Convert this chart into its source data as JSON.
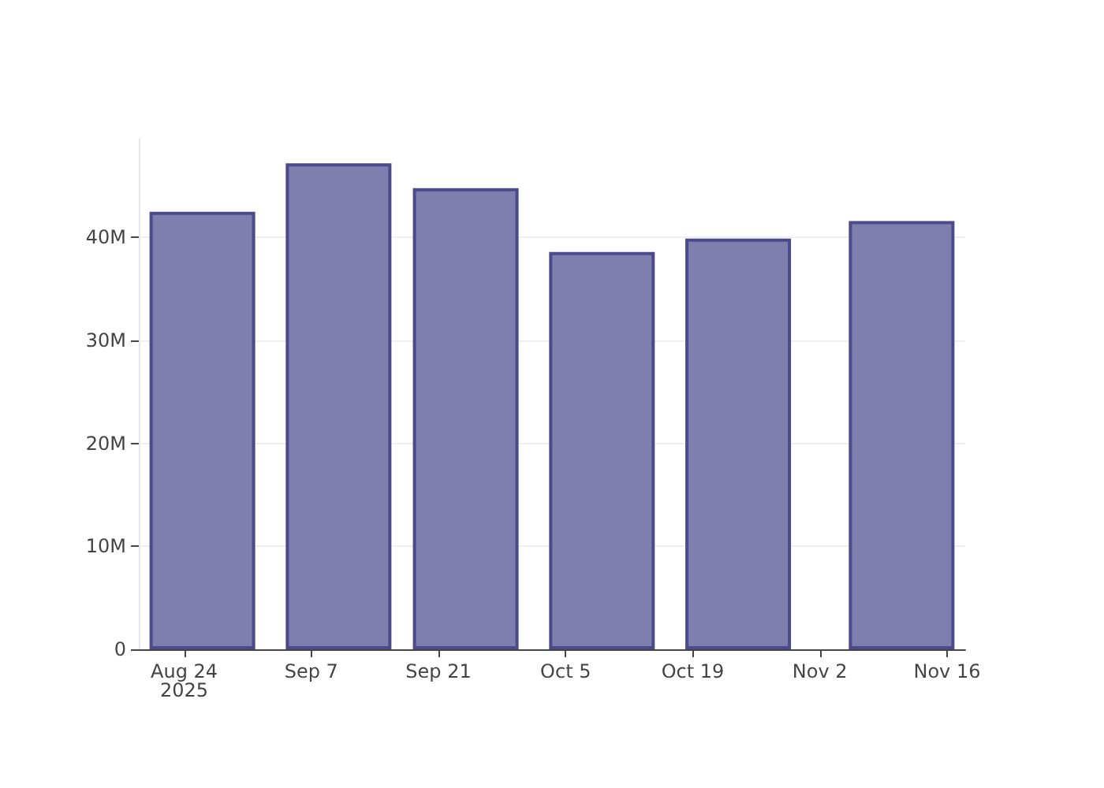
{
  "chart_data": {
    "type": "bar",
    "x": [
      "2025-08-26",
      "2025-09-10",
      "2025-09-24",
      "2025-10-09",
      "2025-10-24",
      "2025-11-11"
    ],
    "values": [
      42.5,
      47.2,
      44.8,
      38.6,
      39.9,
      41.6
    ],
    "color": "#7f7faf",
    "xlim": [
      "2025-08-19",
      "2025-11-18"
    ],
    "xticks": [
      {
        "value": "2025-08-24",
        "label": "Aug 24\n2025"
      },
      {
        "value": "2025-09-07",
        "label": "Sep 7"
      },
      {
        "value": "2025-09-21",
        "label": "Sep 21"
      },
      {
        "value": "2025-10-05",
        "label": "Oct 5"
      },
      {
        "value": "2025-10-19",
        "label": "Oct 19"
      },
      {
        "value": "2025-11-02",
        "label": "Nov 2"
      },
      {
        "value": "2025-11-16",
        "label": "Nov 16"
      }
    ],
    "ylim": [
      0,
      49.6
    ],
    "yticks": [
      {
        "value": 0,
        "label": "0"
      },
      {
        "value": 10,
        "label": "10M"
      },
      {
        "value": 20,
        "label": "20M"
      },
      {
        "value": 30,
        "label": "30M"
      },
      {
        "value": 40,
        "label": "40M"
      }
    ],
    "grid": "y"
  }
}
